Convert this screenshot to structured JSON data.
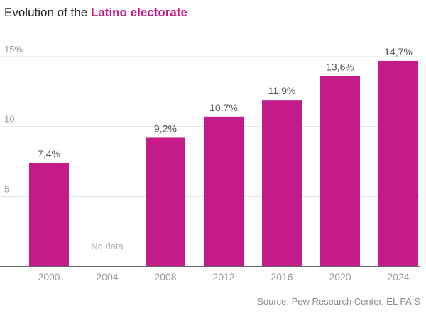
{
  "title": {
    "prefix": "Evolution of the",
    "highlight": "Latino electorate"
  },
  "source": "Source: Pew Research Center. EL PAÍS",
  "colors": {
    "bar": "#c51a8a",
    "highlight": "#c51a8a",
    "grid": "#e2e2e2",
    "axis": "#333333",
    "tick_text": "#999999",
    "label_text": "#555555",
    "nodata_text": "#aaaaaa"
  },
  "chart_data": {
    "type": "bar",
    "categories": [
      "2000",
      "2004",
      "2008",
      "2012",
      "2016",
      "2020",
      "2024"
    ],
    "values": [
      7.4,
      null,
      9.2,
      10.7,
      11.9,
      13.6,
      14.7
    ],
    "value_labels": [
      "7,4%",
      "",
      "9,2%",
      "10,7%",
      "11,9%",
      "13,6%",
      "14,7%"
    ],
    "no_data_label": "No data",
    "ylim": [
      0,
      15
    ],
    "yticks": [
      5,
      10,
      15
    ],
    "ytick_labels": [
      "5",
      "10",
      "15%"
    ],
    "grid": true,
    "xlabel": "",
    "ylabel": ""
  }
}
